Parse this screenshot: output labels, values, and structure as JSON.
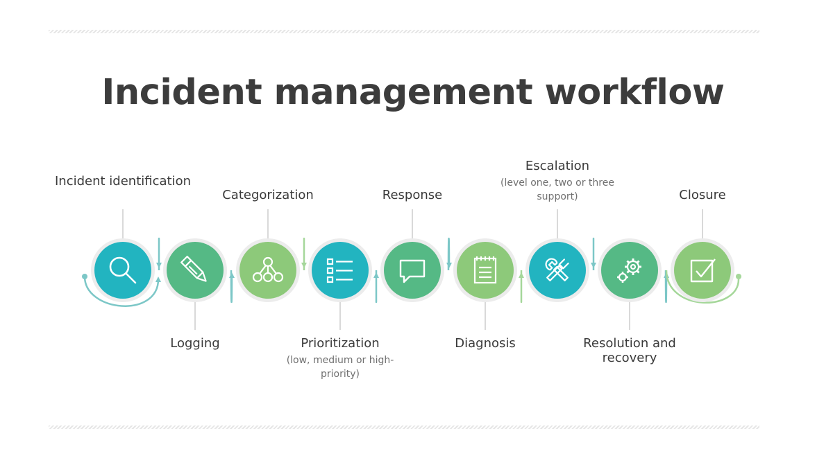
{
  "title": "Incident management workflow",
  "colors": {
    "teal": "#22b4c0",
    "mid_green": "#55b985",
    "light_green": "#8dc97a",
    "connector_teal": "#7cc7c7",
    "connector_green": "#a5d79a",
    "pin": "#cccccc"
  },
  "steps": [
    {
      "label": "Incident identification",
      "sub": "",
      "icon": "magnifier-icon",
      "color": "teal"
    },
    {
      "label": "Logging",
      "sub": "",
      "icon": "pen-icon",
      "color": "mid_green"
    },
    {
      "label": "Categorization",
      "sub": "",
      "icon": "hierarchy-icon",
      "color": "light_green"
    },
    {
      "label": "Prioritization",
      "sub": "(low, medium or high-priority)",
      "icon": "checklist-icon",
      "color": "teal"
    },
    {
      "label": "Response",
      "sub": "",
      "icon": "chat-bubble-icon",
      "color": "mid_green"
    },
    {
      "label": "Diagnosis",
      "sub": "",
      "icon": "notepad-icon",
      "color": "light_green"
    },
    {
      "label": "Escalation",
      "sub": "(level one, two or three support)",
      "icon": "tools-icon",
      "color": "teal"
    },
    {
      "label": "Resolution and recovery",
      "sub": "",
      "icon": "gears-icon",
      "color": "mid_green"
    },
    {
      "label": "Closure",
      "sub": "",
      "icon": "checkbox-icon",
      "color": "light_green"
    }
  ]
}
